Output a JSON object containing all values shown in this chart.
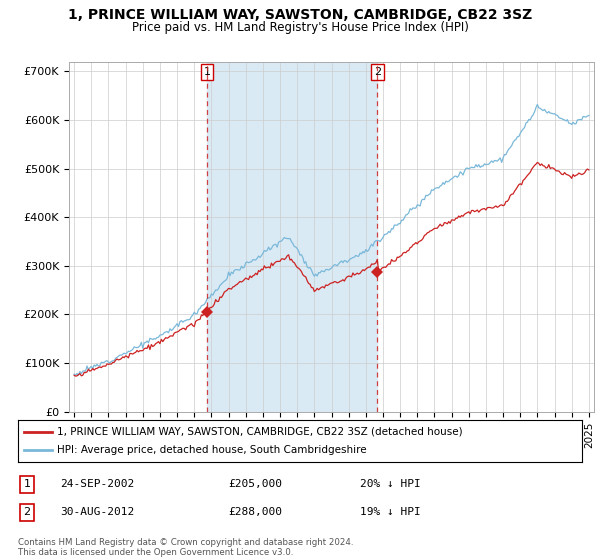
{
  "title": "1, PRINCE WILLIAM WAY, SAWSTON, CAMBRIDGE, CB22 3SZ",
  "subtitle": "Price paid vs. HM Land Registry's House Price Index (HPI)",
  "hpi_color": "#7ab8d9",
  "hpi_shade_color": "#daeaf5",
  "price_color": "#cc2222",
  "purchase1_date": "24-SEP-2002",
  "purchase1_price": 205000,
  "purchase1_pct": "20% ↓ HPI",
  "purchase2_date": "30-AUG-2012",
  "purchase2_price": 288000,
  "purchase2_pct": "19% ↓ HPI",
  "footer": "Contains HM Land Registry data © Crown copyright and database right 2024.\nThis data is licensed under the Open Government Licence v3.0.",
  "legend1": "1, PRINCE WILLIAM WAY, SAWSTON, CAMBRIDGE, CB22 3SZ (detached house)",
  "legend2": "HPI: Average price, detached house, South Cambridgeshire",
  "ylim": [
    0,
    720000
  ],
  "yticks": [
    0,
    100000,
    200000,
    300000,
    400000,
    500000,
    600000,
    700000
  ],
  "ytick_labels": [
    "£0",
    "£100K",
    "£200K",
    "£300K",
    "£400K",
    "£500K",
    "£600K",
    "£700K"
  ],
  "xlim_left": 1994.7,
  "xlim_right": 2025.3
}
